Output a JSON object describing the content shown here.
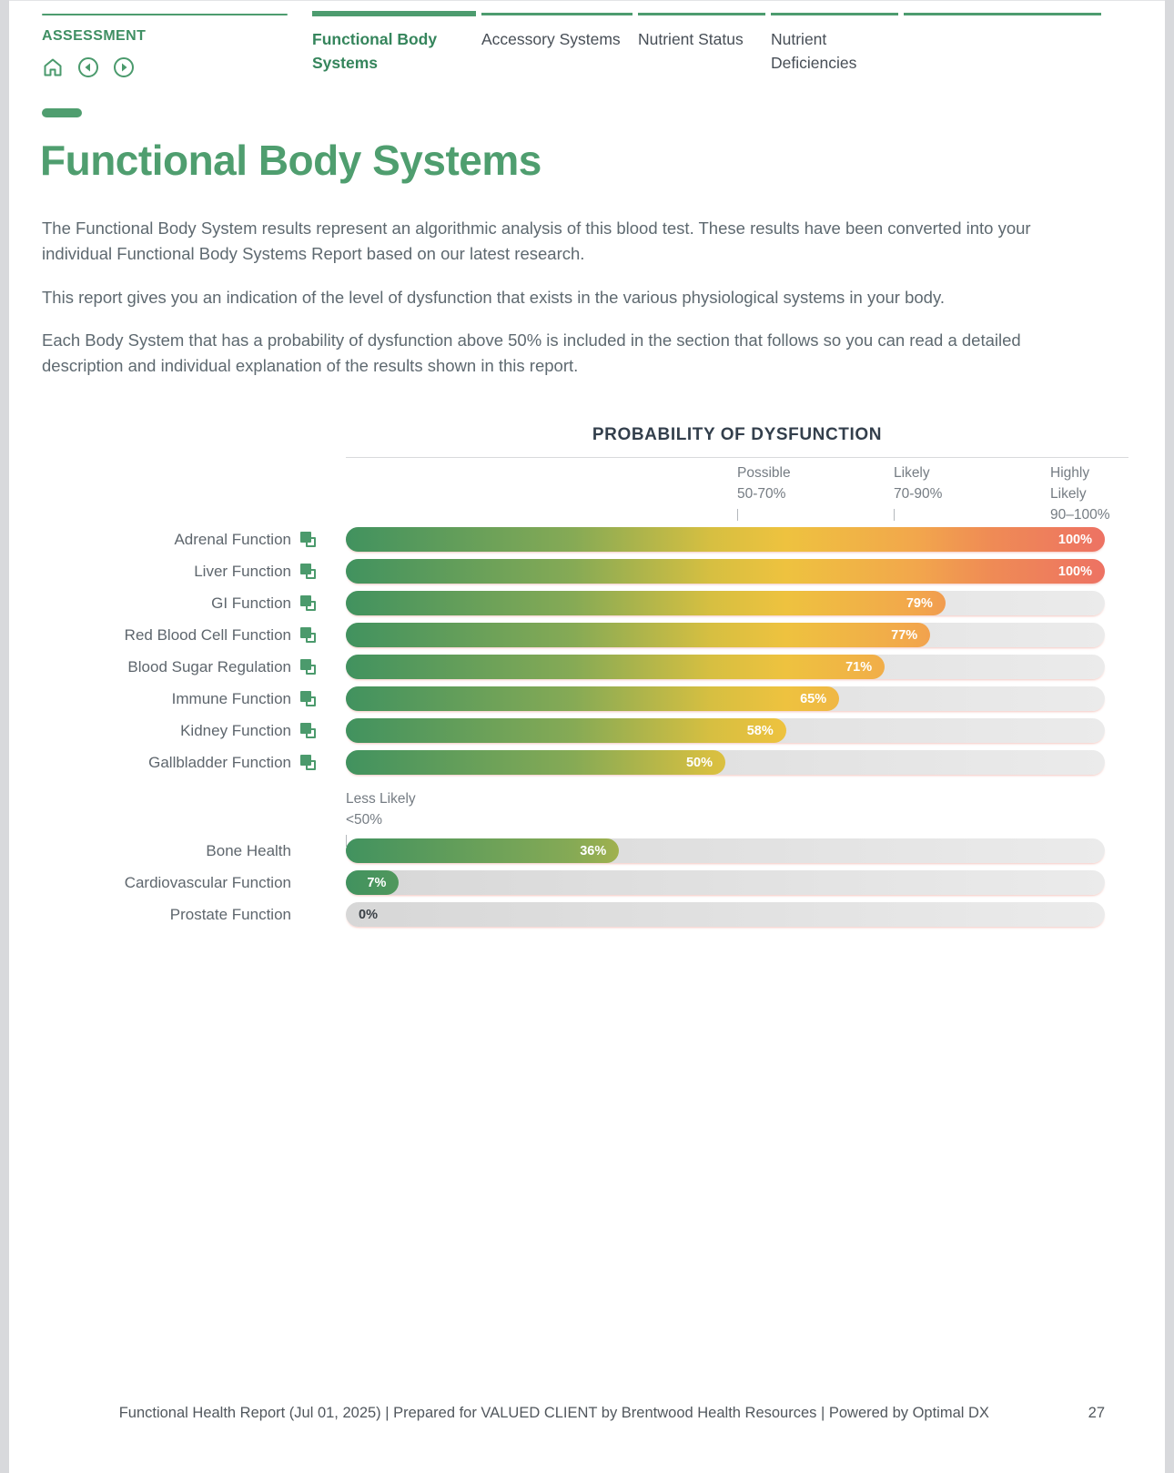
{
  "header": {
    "section_label": "ASSESSMENT",
    "tabs": [
      {
        "label": "Functional Body Systems",
        "active": true
      },
      {
        "label": "Accessory Systems",
        "active": false
      },
      {
        "label": "Nutrient Status",
        "active": false
      },
      {
        "label": "Nutrient Deficiencies",
        "active": false
      }
    ]
  },
  "content": {
    "title": "Functional Body Systems",
    "paragraphs": [
      "The Functional Body System results represent an algorithmic analysis of this blood test. These results have been converted into your individual Functional Body Systems Report based on our latest research.",
      "This report gives you an indication of the level of dysfunction that exists in the various physiological systems in your body.",
      "Each Body System that has a probability of dysfunction above 50% is included in the section that follows so you can read a detailed description and individual explanation of the results shown in this report."
    ]
  },
  "chart_data": {
    "type": "bar",
    "orientation": "horizontal",
    "title": "PROBABILITY OF DYSFUNCTION",
    "xlim": [
      0,
      100
    ],
    "unit": "%",
    "legend_position": "top",
    "grid": false,
    "thresholds": {
      "possible": {
        "label": "Possible",
        "range": "50-70%",
        "at": 50
      },
      "likely": {
        "label": "Likely",
        "range": "70-90%",
        "at": 70
      },
      "highly_likely": {
        "label": "Highly Likely",
        "range": "90–100%",
        "at": 90
      },
      "less_likely": {
        "label": "Less Likely",
        "range": "<50%",
        "at": 0
      }
    },
    "categories": [
      "Adrenal Function",
      "Liver Function",
      "GI Function",
      "Red Blood Cell Function",
      "Blood Sugar Regulation",
      "Immune Function",
      "Kidney Function",
      "Gallbladder Function",
      "Bone Health",
      "Cardiovascular Function",
      "Prostate Function"
    ],
    "values": [
      100,
      100,
      79,
      77,
      71,
      65,
      58,
      50,
      36,
      7,
      0
    ],
    "rows": [
      {
        "label": "Adrenal Function",
        "value": 100,
        "display": "100%",
        "linked": true,
        "group": "above50"
      },
      {
        "label": "Liver Function",
        "value": 100,
        "display": "100%",
        "linked": true,
        "group": "above50"
      },
      {
        "label": "GI Function",
        "value": 79,
        "display": "79%",
        "linked": true,
        "group": "above50"
      },
      {
        "label": "Red Blood Cell Function",
        "value": 77,
        "display": "77%",
        "linked": true,
        "group": "above50"
      },
      {
        "label": "Blood Sugar Regulation",
        "value": 71,
        "display": "71%",
        "linked": true,
        "group": "above50"
      },
      {
        "label": "Immune Function",
        "value": 65,
        "display": "65%",
        "linked": true,
        "group": "above50"
      },
      {
        "label": "Kidney Function",
        "value": 58,
        "display": "58%",
        "linked": true,
        "group": "above50"
      },
      {
        "label": "Gallbladder Function",
        "value": 50,
        "display": "50%",
        "linked": true,
        "group": "above50"
      },
      {
        "label": "Bone Health",
        "value": 36,
        "display": "36%",
        "linked": false,
        "group": "below50"
      },
      {
        "label": "Cardiovascular Function",
        "value": 7,
        "display": "7%",
        "linked": false,
        "group": "below50"
      },
      {
        "label": "Prostate Function",
        "value": 0,
        "display": "0%",
        "linked": false,
        "group": "below50"
      }
    ],
    "colors": {
      "gradient_start": "#41925f",
      "gradient_mid": "#eec23f",
      "gradient_end": "#ed7263",
      "track": "#e3e3e3",
      "value_text": "#ffffff"
    }
  },
  "theme": {
    "accent_green": "#4a9a6c",
    "title_green": "#4f9e6f",
    "heading_navy": "#333f4c",
    "body_text": "#5e6970"
  },
  "footer": {
    "text": "Functional Health Report (Jul 01, 2025) | Prepared for VALUED CLIENT by Brentwood Health Resources | Powered by Optimal DX",
    "page_number": "27"
  }
}
